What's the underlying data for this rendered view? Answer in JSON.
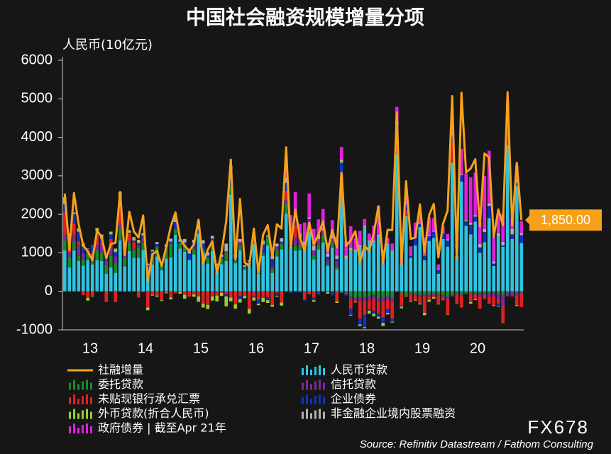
{
  "chart_data": {
    "type": "stacked_bar",
    "title": "中国社会融资规模增量分项",
    "y_axis_label": "人民币(10亿元)",
    "source": "Source: Refinitiv Datastream / Fathom Consulting",
    "watermark": "FX678",
    "ylim": [
      -1000,
      6000
    ],
    "yticks": [
      -1000,
      0,
      1000,
      2000,
      3000,
      4000,
      5000,
      6000
    ],
    "grid": false,
    "categories": [
      null,
      null,
      null,
      null,
      null,
      null,
      "13",
      null,
      null,
      null,
      null,
      null,
      null,
      null,
      null,
      null,
      null,
      null,
      "14",
      null,
      null,
      null,
      null,
      null,
      null,
      null,
      null,
      null,
      null,
      null,
      "15",
      null,
      null,
      null,
      null,
      null,
      null,
      null,
      null,
      null,
      null,
      null,
      "16",
      null,
      null,
      null,
      null,
      null,
      null,
      null,
      null,
      null,
      null,
      null,
      "17",
      null,
      null,
      null,
      null,
      null,
      null,
      null,
      null,
      null,
      null,
      null,
      "18",
      null,
      null,
      null,
      null,
      null,
      null,
      null,
      null,
      null,
      null,
      null,
      "19",
      null,
      null,
      null,
      null,
      null,
      null,
      null,
      null,
      null,
      null,
      null,
      "20",
      null,
      null,
      null,
      null,
      null,
      null,
      null,
      null,
      null
    ],
    "series": [
      {
        "name": "社融增量",
        "type": "line",
        "color": "#f7a11a",
        "values": [
          2540,
          1070,
          2550,
          1750,
          1190,
          1040,
          810,
          1580,
          1410,
          860,
          1230,
          1260,
          2580,
          940,
          2070,
          1550,
          1400,
          1970,
          270,
          960,
          1050,
          660,
          1150,
          1690,
          2050,
          1360,
          1180,
          1050,
          1220,
          1860,
          720,
          1080,
          1300,
          480,
          1020,
          1820,
          3420,
          820,
          2400,
          750,
          660,
          1630,
          490,
          1470,
          1720,
          900,
          1740,
          1630,
          3740,
          1150,
          2120,
          1390,
          1060,
          1780,
          1220,
          1480,
          1820,
          1040,
          1600,
          1140,
          3080,
          1180,
          1330,
          1560,
          760,
          1180,
          1040,
          1520,
          2210,
          740,
          1600,
          1590,
          4640,
          700,
          2860,
          1360,
          1400,
          2260,
          1010,
          1980,
          2270,
          880,
          1750,
          2100,
          5070,
          860,
          5160,
          3090,
          3190,
          3430,
          1690,
          3580,
          3480,
          1420,
          2130,
          1720,
          5170,
          1710,
          3340,
          1850
        ],
        "value_labels": [
          null,
          null,
          null,
          null,
          null,
          null,
          null,
          null,
          null,
          null,
          null,
          null,
          null,
          null,
          null,
          null,
          null,
          null,
          null,
          null,
          null,
          null,
          null,
          null,
          null,
          null,
          null,
          null,
          null,
          null,
          null,
          null,
          null,
          null,
          null,
          null,
          null,
          null,
          null,
          null,
          null,
          null,
          null,
          null,
          null,
          null,
          null,
          null,
          null,
          null,
          null,
          null,
          null,
          null,
          null,
          null,
          null,
          null,
          null,
          null,
          null,
          null,
          null,
          null,
          null,
          null,
          null,
          null,
          null,
          null,
          null,
          null,
          null,
          null,
          null,
          null,
          null,
          null,
          null,
          null,
          null,
          null,
          null,
          null,
          null,
          null,
          null,
          null,
          null,
          null,
          null,
          null,
          null,
          null,
          null,
          null,
          null,
          null,
          null,
          "1,850.00"
        ]
      },
      {
        "name": "人民币贷款",
        "color": "#2ec4e0",
        "values": [
          1070,
          620,
          1060,
          790,
          670,
          810,
          700,
          810,
          790,
          460,
          620,
          480,
          1320,
          650,
          1050,
          870,
          870,
          1070,
          390,
          700,
          910,
          550,
          850,
          880,
          1470,
          1110,
          1030,
          810,
          960,
          1490,
          1020,
          720,
          1050,
          510,
          710,
          790,
          2510,
          730,
          1070,
          560,
          650,
          1230,
          460,
          920,
          1190,
          480,
          910,
          1090,
          2020,
          1160,
          1060,
          1070,
          1120,
          1540,
          830,
          1090,
          1270,
          660,
          1140,
          580,
          2940,
          840,
          1060,
          1030,
          1150,
          1670,
          1290,
          1280,
          1430,
          700,
          1220,
          1060,
          3570,
          700,
          1960,
          870,
          1190,
          1670,
          810,
          1310,
          1390,
          460,
          1360,
          1160,
          3340,
          910,
          2850,
          1700,
          1480,
          1810,
          1000,
          1280,
          1900,
          660,
          1430,
          1160,
          3800,
          1360,
          2730,
          1260
        ]
      },
      {
        "name": "委托贷款",
        "color": "#1a8a2a",
        "values": [
          250,
          280,
          240,
          130,
          160,
          170,
          230,
          260,
          210,
          230,
          300,
          250,
          310,
          230,
          220,
          200,
          250,
          200,
          180,
          240,
          250,
          110,
          240,
          350,
          120,
          140,
          170,
          10,
          130,
          40,
          40,
          150,
          120,
          100,
          130,
          220,
          220,
          50,
          130,
          60,
          80,
          160,
          80,
          60,
          190,
          100,
          150,
          140,
          250,
          110,
          120,
          140,
          10,
          150,
          110,
          120,
          170,
          60,
          130,
          60,
          -40,
          -10,
          -130,
          -170,
          -150,
          -160,
          -130,
          -100,
          -180,
          -160,
          -130,
          -160,
          -10,
          -60,
          -130,
          -50,
          -80,
          -100,
          -70,
          -90,
          -60,
          -90,
          -100,
          -140,
          -90,
          -40,
          -80,
          -40,
          -50,
          -40,
          -40,
          -40,
          -50,
          -30,
          -60,
          -110,
          -30,
          -20,
          -30,
          -20
        ]
      },
      {
        "name": "信托贷款",
        "color": "#7a2a9a",
        "values": [
          150,
          100,
          170,
          280,
          150,
          100,
          80,
          150,
          200,
          110,
          200,
          180,
          140,
          110,
          50,
          40,
          80,
          140,
          50,
          60,
          10,
          10,
          30,
          40,
          30,
          0,
          10,
          20,
          40,
          30,
          40,
          0,
          20,
          0,
          10,
          30,
          30,
          10,
          80,
          0,
          0,
          20,
          30,
          20,
          40,
          70,
          110,
          30,
          100,
          80,
          200,
          110,
          80,
          160,
          120,
          110,
          80,
          100,
          110,
          140,
          60,
          -30,
          -100,
          -40,
          -90,
          -90,
          -100,
          -90,
          -100,
          -100,
          -80,
          -110,
          30,
          0,
          0,
          -10,
          -30,
          -40,
          -50,
          -40,
          -60,
          -30,
          -40,
          -60,
          -40,
          -30,
          -20,
          -20,
          -30,
          -50,
          -100,
          -50,
          -90,
          -100,
          -140,
          -250,
          -100,
          -90,
          -80,
          -20
        ]
      },
      {
        "name": "未贴现银行承兑汇票",
        "color": "#e02020",
        "values": [
          580,
          190,
          290,
          100,
          -100,
          -170,
          -130,
          250,
          60,
          -260,
          240,
          -280,
          560,
          120,
          170,
          170,
          -160,
          -20,
          -420,
          -90,
          -110,
          -230,
          -30,
          -160,
          -50,
          -10,
          -90,
          -140,
          -80,
          -130,
          -320,
          -350,
          -130,
          -110,
          -40,
          -70,
          -160,
          -340,
          -120,
          -120,
          -460,
          -140,
          -220,
          -170,
          -150,
          -350,
          -40,
          -290,
          240,
          10,
          340,
          70,
          -220,
          -60,
          -160,
          40,
          50,
          -20,
          -10,
          -260,
          40,
          -30,
          -220,
          -40,
          -470,
          -360,
          -240,
          -320,
          -300,
          -420,
          -250,
          -440,
          380,
          -320,
          140,
          -210,
          -110,
          -180,
          -440,
          -90,
          -30,
          -210,
          -80,
          -400,
          520,
          -260,
          -320,
          -10,
          -200,
          -120,
          -310,
          -110,
          -160,
          -230,
          -120,
          -450,
          420,
          -20,
          -250,
          -370
        ]
      },
      {
        "name": "企业债券",
        "color": "#1030c0",
        "values": [
          220,
          200,
          250,
          250,
          180,
          30,
          170,
          90,
          110,
          60,
          120,
          110,
          110,
          -20,
          30,
          40,
          50,
          40,
          70,
          40,
          60,
          60,
          40,
          20,
          180,
          40,
          60,
          140,
          130,
          50,
          140,
          60,
          180,
          60,
          40,
          -60,
          380,
          80,
          -80,
          20,
          50,
          -20,
          -100,
          220,
          -80,
          190,
          -80,
          30,
          210,
          -40,
          240,
          -30,
          -20,
          30,
          -70,
          -60,
          10,
          80,
          -100,
          60,
          300,
          -40,
          -160,
          -20,
          -150,
          -320,
          -30,
          -70,
          -80,
          -140,
          -100,
          -80,
          340,
          -20,
          160,
          60,
          200,
          80,
          120,
          130,
          160,
          100,
          150,
          160,
          190,
          220,
          170,
          120,
          250,
          130,
          140,
          260,
          320,
          60,
          -80,
          30,
          510,
          120,
          100,
          200
        ]
      },
      {
        "name": "外币贷款(折合人民币)",
        "color": "#9acd32",
        "values": [
          160,
          100,
          20,
          80,
          80,
          -70,
          -10,
          80,
          100,
          -10,
          60,
          80,
          120,
          80,
          50,
          60,
          60,
          20,
          -70,
          -20,
          -30,
          -20,
          -20,
          -50,
          70,
          -50,
          -100,
          0,
          -60,
          -140,
          -100,
          -110,
          -110,
          -150,
          -80,
          -260,
          -100,
          -110,
          -90,
          -60,
          -120,
          -80,
          -40,
          -110,
          -70,
          -50,
          -20,
          -80,
          50,
          20,
          20,
          20,
          0,
          -10,
          -40,
          -10,
          10,
          -40,
          0,
          -40,
          30,
          10,
          -20,
          -20,
          -40,
          -30,
          -80,
          -70,
          -50,
          -80,
          -40,
          -20,
          40,
          -40,
          -10,
          -10,
          -20,
          -20,
          -60,
          -50,
          -40,
          -10,
          -10,
          -10,
          20,
          0,
          0,
          20,
          -40,
          -20,
          0,
          30,
          -10,
          -20,
          -10,
          -10,
          10,
          40,
          -20,
          0
        ]
      },
      {
        "name": "非金融企业境内股票融资",
        "color": "#b0b0b0",
        "values": [
          20,
          20,
          20,
          10,
          10,
          10,
          10,
          10,
          10,
          10,
          10,
          10,
          20,
          50,
          20,
          30,
          30,
          40,
          30,
          40,
          50,
          30,
          60,
          80,
          70,
          60,
          90,
          70,
          80,
          200,
          90,
          90,
          70,
          50,
          70,
          200,
          120,
          110,
          80,
          40,
          30,
          40,
          90,
          100,
          30,
          100,
          70,
          90,
          80,
          100,
          100,
          90,
          80,
          40,
          120,
          110,
          50,
          80,
          70,
          90,
          50,
          80,
          70,
          50,
          50,
          30,
          30,
          40,
          40,
          30,
          20,
          10,
          40,
          20,
          20,
          20,
          20,
          20,
          30,
          30,
          20,
          20,
          20,
          30,
          50,
          60,
          30,
          20,
          50,
          40,
          90,
          50,
          60,
          60,
          80,
          100,
          70,
          110,
          80,
          50
        ]
      },
      {
        "name": "政府债券 | 截至Apr 21年",
        "color": "#e020e0",
        "values": [
          null,
          null,
          null,
          null,
          null,
          null,
          null,
          null,
          null,
          null,
          null,
          null,
          null,
          null,
          null,
          null,
          null,
          null,
          null,
          null,
          null,
          null,
          null,
          null,
          null,
          null,
          null,
          null,
          null,
          null,
          null,
          null,
          null,
          null,
          null,
          null,
          null,
          null,
          null,
          null,
          null,
          null,
          null,
          null,
          null,
          null,
          null,
          null,
          400,
          500,
          500,
          250,
          500,
          620,
          440,
          400,
          500,
          280,
          400,
          480,
          330,
          360,
          560,
          300,
          370,
          180,
          180,
          390,
          750,
          350,
          150,
          170,
          390,
          270,
          280,
          220,
          380,
          300,
          430,
          450,
          330,
          120,
          150,
          140,
          180,
          230,
          650,
          1200,
          1180,
          1100,
          560,
          1380,
          1370,
          630,
          500,
          720,
          130,
          290,
          370,
          310
        ]
      }
    ]
  }
}
